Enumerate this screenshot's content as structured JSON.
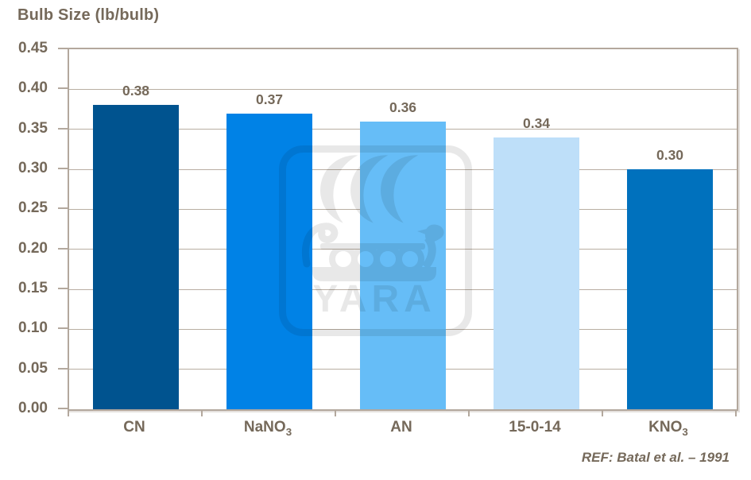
{
  "title": "Bulb Size (lb/bulb)",
  "ref_note": "REF: Batal et al. – 1991",
  "watermark_text": "YARA",
  "colors": {
    "text": "#75695a",
    "gridline": "#b9aea2",
    "plot_border": "#b3a89d",
    "background": "#ffffff",
    "watermark_gray": "#e9e9e9"
  },
  "chart_data": {
    "type": "bar",
    "title": "Bulb Size (lb/bulb)",
    "categories": [
      "CN",
      "NaNO₃",
      "AN",
      "15-0-14",
      "KNO₃"
    ],
    "categories_parts": [
      {
        "base": "CN",
        "sub": ""
      },
      {
        "base": "NaNO",
        "sub": "3"
      },
      {
        "base": "AN",
        "sub": ""
      },
      {
        "base": "15-0-14",
        "sub": ""
      },
      {
        "base": "KNO",
        "sub": "3"
      }
    ],
    "values": [
      0.38,
      0.37,
      0.36,
      0.34,
      0.3
    ],
    "value_labels": [
      "0.38",
      "0.37",
      "0.36",
      "0.34",
      "0.30"
    ],
    "bar_colors": [
      "#00538f",
      "#0082e6",
      "#66bdf7",
      "#bedff9",
      "#0071bd"
    ],
    "xlabel": "",
    "ylabel": "",
    "ylim": [
      0,
      0.45
    ],
    "ytick_step": 0.05,
    "yticks": [
      "0.45",
      "0.40",
      "0.35",
      "0.30",
      "0.25",
      "0.20",
      "0.15",
      "0.10",
      "0.05",
      "0.00"
    ],
    "grid": true,
    "legend": false,
    "annotation": "REF: Batal et al. – 1991"
  }
}
